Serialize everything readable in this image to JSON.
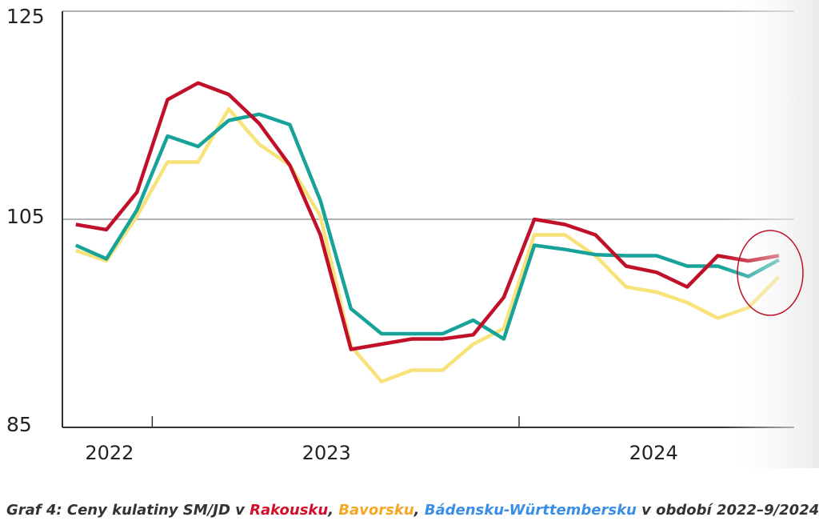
{
  "chart_data": {
    "type": "line",
    "x": [
      0,
      1,
      2,
      3,
      4,
      5,
      6,
      7,
      8,
      9,
      10,
      11,
      12,
      13,
      14,
      15,
      16,
      17,
      18,
      19,
      20,
      21,
      22,
      23
    ],
    "xlim": [
      -0.44,
      23.5
    ],
    "xtick_marks": [
      2.5,
      14.5
    ],
    "year_labels": [
      {
        "value": 1.1,
        "label": "2022"
      },
      {
        "value": 8.2,
        "label": "2023"
      },
      {
        "value": 18.9,
        "label": "2024"
      }
    ],
    "ylim": [
      85,
      125
    ],
    "yticks": [
      85,
      105,
      125
    ],
    "grid": true,
    "series": [
      {
        "name": "Rakousku",
        "color": "#c0102a",
        "label_color": "#d0102a",
        "values": [
          104.5,
          104.0,
          107.6,
          116.5,
          118.1,
          117.0,
          114.2,
          110.2,
          103.5,
          92.5,
          93.0,
          93.5,
          93.5,
          93.9,
          97.5,
          105.0,
          104.5,
          103.5,
          100.5,
          99.9,
          98.5,
          101.5,
          101.0,
          101.5
        ]
      },
      {
        "name": "Bavorsku",
        "color": "#f8e27a",
        "label_color": "#f5a623",
        "values": [
          102.0,
          101.0,
          105.3,
          110.5,
          110.5,
          115.6,
          112.2,
          110.2,
          105.3,
          92.8,
          89.4,
          90.5,
          90.5,
          93.0,
          94.5,
          103.5,
          103.5,
          101.5,
          98.5,
          98.0,
          97.0,
          95.5,
          96.5,
          99.5
        ]
      },
      {
        "name": "Bádensku-Württembersku",
        "color": "#17a39a",
        "label_color": "#3a8ee6",
        "values": [
          102.5,
          101.2,
          105.9,
          113.0,
          112.0,
          114.5,
          115.1,
          114.1,
          106.8,
          96.4,
          94.0,
          94.0,
          94.0,
          95.3,
          93.5,
          102.5,
          102.1,
          101.6,
          101.5,
          101.5,
          100.5,
          100.5,
          99.5,
          101.1
        ]
      }
    ],
    "caption": {
      "prefix": "Graf 4: Ceny kulatiny SM/JD v ",
      "separators": [
        ", ",
        ", "
      ],
      "suffix": " v období 2022–9/2024"
    }
  }
}
